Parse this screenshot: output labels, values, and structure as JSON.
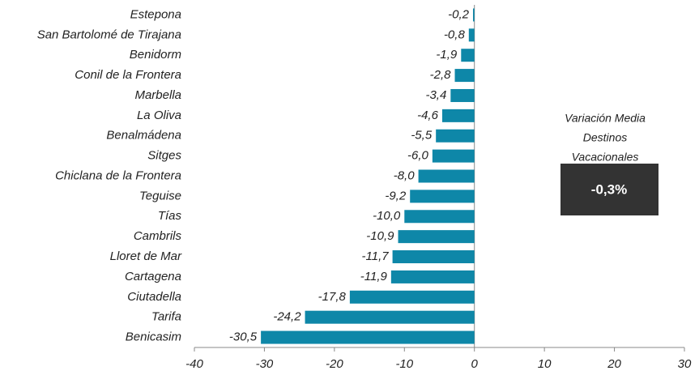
{
  "chart_data": {
    "type": "barh",
    "categories": [
      "Estepona",
      "San Bartolomé de Tirajana",
      "Benidorm",
      "Conil de la Frontera",
      "Marbella",
      "La Oliva",
      "Benalmádena",
      "Sitges",
      "Chiclana de la Frontera",
      "Teguise",
      "Tías",
      "Cambrils",
      "Lloret de Mar",
      "Cartagena",
      "Ciutadella",
      "Tarifa",
      "Benicasim"
    ],
    "values": [
      -0.2,
      -0.8,
      -1.9,
      -2.8,
      -3.4,
      -4.6,
      -5.5,
      -6.0,
      -8.0,
      -9.2,
      -10.0,
      -10.9,
      -11.7,
      -11.9,
      -17.8,
      -24.2,
      -30.5
    ],
    "value_labels": [
      "-0,2",
      "-0,8",
      "-1,9",
      "-2,8",
      "-3,4",
      "-4,6",
      "-5,5",
      "-6,0",
      "-8,0",
      "-9,2",
      "-10,0",
      "-10,9",
      "-11,7",
      "-11,9",
      "-17,8",
      "-24,2",
      "-30,5"
    ],
    "color": "#0e87a8",
    "xlim": [
      -40,
      30
    ],
    "xticks": [
      -40,
      -30,
      -20,
      -10,
      0,
      10,
      20,
      30
    ],
    "annotation_lines": [
      "Variación Media",
      "Destinos",
      "Vacacionales"
    ],
    "annotation_box": "-0,3%"
  }
}
